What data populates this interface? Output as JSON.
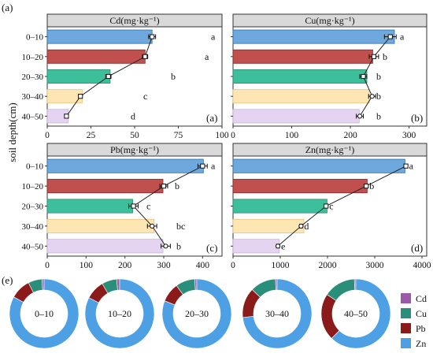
{
  "figure": {
    "label_a": "(a)",
    "label_e": "(e)",
    "y_axis_label": "soil depth(cm)"
  },
  "colors": {
    "depths": [
      "#6fa8dc",
      "#c0504d",
      "#3cbf9a",
      "#fde5b4",
      "#e5d4f1"
    ],
    "depth_strokes": [
      "#2e6ea6",
      "#8b2a2a",
      "#2a8a6e",
      "#e8c27e",
      "#c6b2dc"
    ],
    "panel_header": "#d9d9d9",
    "donut": {
      "Cd": "#9a5aa8",
      "Cu": "#2a8f7a",
      "Pb": "#8b1a1a",
      "Zn": "#4ea0e4"
    }
  },
  "chart_data": [
    {
      "type": "bar",
      "panel": "(a)",
      "title": "Cd(mg·kg⁻¹)",
      "categories": [
        "0–10",
        "10–20",
        "20–30",
        "30–40",
        "40–50"
      ],
      "values": [
        60,
        56,
        36,
        20,
        12
      ],
      "point_values": [
        60,
        56,
        35,
        19,
        11
      ],
      "error": [
        2,
        1.5,
        1.5,
        1,
        1
      ],
      "letters": [
        "a",
        "a",
        "b",
        "c",
        "d"
      ],
      "xlim": [
        0,
        100
      ],
      "xticks": [
        0,
        25,
        50,
        75,
        100
      ],
      "markers": [
        "square",
        "square",
        "square",
        "square",
        "square"
      ]
    },
    {
      "type": "bar",
      "panel": "(b)",
      "title": "Cu(mg·kg⁻¹)",
      "categories": [
        "0–10",
        "10–20",
        "20–30",
        "30–40",
        "40–50"
      ],
      "values": [
        275,
        238,
        228,
        232,
        215
      ],
      "point_values": [
        268,
        240,
        222,
        237,
        216
      ],
      "error": [
        10,
        8,
        6,
        6,
        6
      ],
      "letters": [
        "a",
        "b",
        "b",
        "b",
        "b"
      ],
      "xlim": [
        0,
        330
      ],
      "xticks": [
        0,
        100,
        200,
        300
      ],
      "markers": [
        "square",
        "square",
        "square",
        "circle",
        "circle"
      ]
    },
    {
      "type": "bar",
      "panel": "(c)",
      "title": "Pb(mg·kg⁻¹)",
      "categories": [
        "0–10",
        "10–20",
        "20–30",
        "30–40",
        "40–50"
      ],
      "values": [
        402,
        298,
        220,
        275,
        298
      ],
      "point_values": [
        400,
        300,
        222,
        270,
        305
      ],
      "error": [
        12,
        10,
        12,
        12,
        12
      ],
      "letters": [
        "a",
        "b",
        "c",
        "bc",
        "b"
      ],
      "xlim": [
        0,
        450
      ],
      "xticks": [
        0,
        100,
        200,
        300,
        400
      ],
      "markers": [
        "square",
        "square",
        "square",
        "circle",
        "circle"
      ]
    },
    {
      "type": "bar",
      "panel": "(d)",
      "title": "Zn(mg·kg⁻¹)",
      "categories": [
        "0–10",
        "10–20",
        "20–30",
        "30–40",
        "40–50"
      ],
      "values": [
        3640,
        2840,
        1990,
        1500,
        980
      ],
      "point_values": [
        3660,
        2820,
        1970,
        1440,
        950
      ],
      "error": [
        30,
        30,
        30,
        30,
        30
      ],
      "letters": [
        "a",
        "b",
        "c",
        "d",
        "e"
      ],
      "xlim": [
        0,
        4100
      ],
      "xticks": [
        0,
        1000,
        2000,
        3000,
        4000
      ],
      "markers": [
        "square",
        "square",
        "square",
        "circle",
        "circle"
      ]
    },
    {
      "type": "pie",
      "panel": "(e)",
      "style": "donut",
      "labels": [
        "Cd",
        "Cu",
        "Pb",
        "Zn"
      ],
      "legend_position": "right",
      "rings": [
        {
          "label": "0–10",
          "values": [
            1.0,
            6.5,
            9.5,
            83.0
          ]
        },
        {
          "label": "10–20",
          "values": [
            1.4,
            7.0,
            9.0,
            82.6
          ]
        },
        {
          "label": "20–30",
          "values": [
            1.0,
            9.0,
            9.0,
            81.0
          ]
        },
        {
          "label": "30–40",
          "values": [
            0.8,
            12.0,
            14.0,
            73.2
          ]
        },
        {
          "label": "40–50",
          "values": [
            0.7,
            15.0,
            22.0,
            62.3
          ]
        }
      ]
    }
  ]
}
